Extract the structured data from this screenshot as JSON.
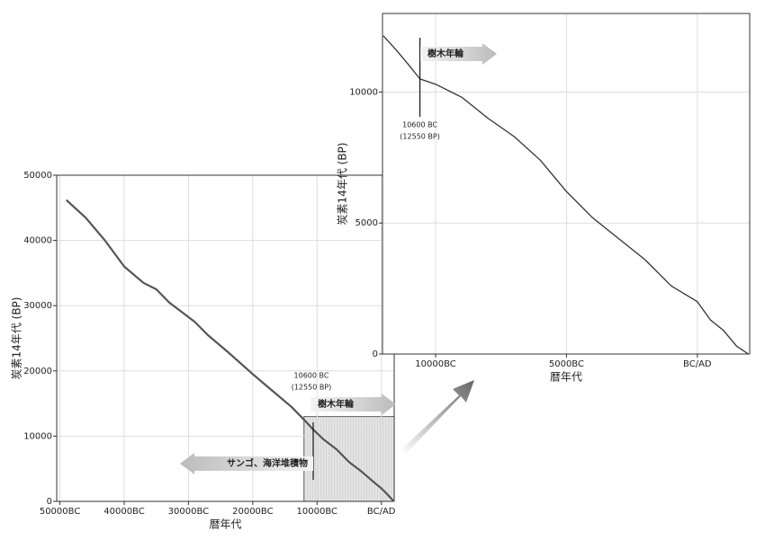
{
  "chart_data": [
    {
      "type": "line",
      "x_label": "暦年代",
      "y_label": "炭素14年代 (BP)",
      "xlim": [
        -50500,
        2000
      ],
      "ylim": [
        0,
        50000
      ],
      "xticks": [
        {
          "value": -50000,
          "label": "50000BC"
        },
        {
          "value": -40000,
          "label": "40000BC"
        },
        {
          "value": -30000,
          "label": "30000BC"
        },
        {
          "value": -20000,
          "label": "20000BC"
        },
        {
          "value": -10000,
          "label": "10000BC"
        },
        {
          "value": 0,
          "label": "BC/AD"
        }
      ],
      "yticks": [
        0,
        10000,
        20000,
        30000,
        40000,
        50000
      ],
      "grid": true,
      "series": [
        {
          "color": "#555555",
          "x": [
            -49000,
            -46000,
            -43000,
            -40000,
            -37000,
            -35000,
            -33000,
            -31000,
            -29000,
            -27000,
            -24000,
            -20000,
            -17000,
            -14000,
            -12000,
            -10600,
            -9000,
            -7000,
            -5000,
            -3000,
            -1000,
            0,
            1000,
            1950
          ],
          "values": [
            46200,
            43500,
            40000,
            36000,
            33500,
            32500,
            30500,
            29000,
            27500,
            25500,
            23000,
            19500,
            17000,
            14500,
            12500,
            11000,
            9500,
            8000,
            6000,
            4500,
            2800,
            2000,
            1000,
            0
          ]
        }
      ],
      "marker_x": -10600,
      "marker_label": [
        "10600 BC",
        "(12550 BP)"
      ],
      "arrow_right": "樹木年輪",
      "arrow_left": "サンゴ、海洋堆積物"
    },
    {
      "type": "line",
      "x_label": "暦年代",
      "y_label": "炭素14年代 (BP)",
      "xlim": [
        -12030,
        2000
      ],
      "ylim": [
        0,
        13000
      ],
      "xticks": [
        {
          "value": -10000,
          "label": "10000BC"
        },
        {
          "value": -5000,
          "label": "5000BC"
        },
        {
          "value": 0,
          "label": "BC/AD"
        }
      ],
      "yticks": [
        0,
        5000,
        10000
      ],
      "grid": true,
      "series": [
        {
          "color": "#333333",
          "x": [
            -12000,
            -11500,
            -11000,
            -10600,
            -10000,
            -9000,
            -8000,
            -7000,
            -6000,
            -5000,
            -4000,
            -3000,
            -2000,
            -1000,
            0,
            500,
            1000,
            1500,
            1950
          ],
          "values": [
            12150,
            11600,
            11000,
            10500,
            10300,
            9800,
            9000,
            8300,
            7400,
            6200,
            5200,
            4400,
            3600,
            2600,
            2000,
            1300,
            900,
            300,
            0
          ]
        }
      ],
      "marker_x": -10600,
      "marker_label": [
        "10600 BC",
        "(12550 BP)"
      ],
      "arrow_right": "樹木年輪"
    }
  ]
}
